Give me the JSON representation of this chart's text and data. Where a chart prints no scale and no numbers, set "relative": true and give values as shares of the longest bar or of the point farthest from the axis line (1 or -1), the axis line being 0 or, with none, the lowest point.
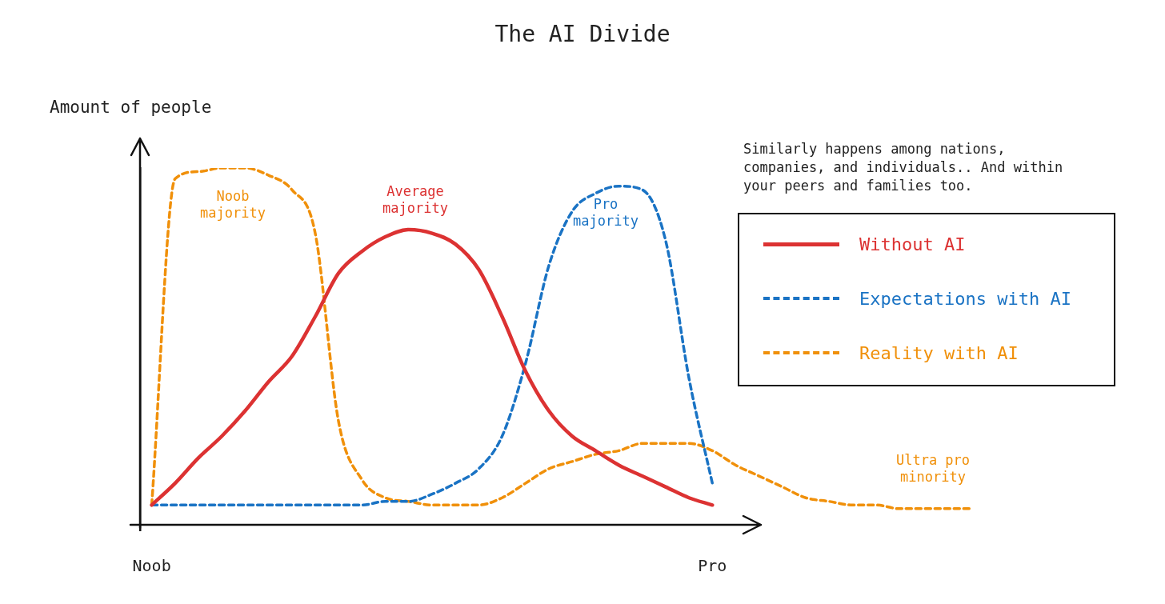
{
  "chart_data": {
    "type": "line",
    "title": "The AI Divide",
    "ylabel": "Amount of people",
    "relative": true,
    "marker": "none",
    "legend": "right",
    "grid": false,
    "categories": [
      "Noob",
      null,
      null,
      null,
      null,
      null,
      null,
      null,
      null,
      null,
      null,
      null,
      null,
      null,
      null,
      null,
      null,
      null,
      null,
      null,
      null,
      null,
      null,
      null,
      "Pro",
      null,
      null,
      null,
      null,
      null,
      null,
      null,
      null,
      null,
      null,
      null
    ],
    "series": [
      {
        "name": "Without AI",
        "color": "#dc3232",
        "line_style": "solid",
        "values": [
          0.07,
          0.13,
          0.2,
          0.26,
          0.33,
          0.41,
          0.48,
          0.59,
          0.71,
          0.77,
          0.81,
          0.83,
          0.82,
          0.79,
          0.72,
          0.59,
          0.44,
          0.33,
          0.26,
          0.22,
          0.18,
          0.15,
          0.12,
          0.09,
          0.07,
          null,
          null,
          null,
          null,
          null,
          null,
          null,
          null,
          null,
          null,
          null
        ]
      },
      {
        "name": "Expectations with AI",
        "color": "#1a73c4",
        "line_style": "dashed",
        "values": [
          0.07,
          0.07,
          0.07,
          0.07,
          0.07,
          0.07,
          0.07,
          0.07,
          0.07,
          0.07,
          0.08,
          0.08,
          0.1,
          0.13,
          0.17,
          0.26,
          0.46,
          0.73,
          0.88,
          0.93,
          0.95,
          0.94,
          0.8,
          0.42,
          0.13,
          null,
          null,
          null,
          null,
          null,
          null,
          null,
          null,
          null,
          null,
          null
        ]
      },
      {
        "name": "Reality with AI",
        "color": "#f0900a",
        "line_style": "dashed",
        "values": [
          0.07,
          0.97,
          0.99,
          1.0,
          1.0,
          0.98,
          0.94,
          0.82,
          0.3,
          0.14,
          0.09,
          0.08,
          0.07,
          0.07,
          0.07,
          0.09,
          0.13,
          0.17,
          0.19,
          0.21,
          0.22,
          0.24,
          0.24,
          0.24,
          0.22,
          0.18,
          0.15,
          0.12,
          0.09,
          0.08,
          0.07,
          0.07,
          0.06,
          0.06,
          0.06,
          0.06
        ]
      }
    ],
    "annotations": [
      "Noob majority",
      "Average majority",
      "Pro majority",
      "Ultra pro minority",
      "Similarly happens among nations, companies, and individuals.. And within your peers and families too."
    ]
  }
}
